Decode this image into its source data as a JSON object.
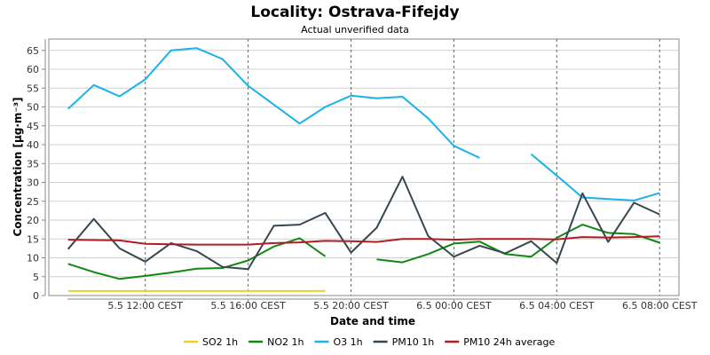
{
  "chart_data": {
    "type": "line",
    "title": "Locality: Ostrava-Fifejdy",
    "subtitle": "Actual unverified data",
    "xlabel": "Date and time",
    "ylabel": "Concentration [µg·m⁻³]",
    "ylim": [
      0,
      68
    ],
    "y_ticks": [
      0,
      5,
      10,
      15,
      20,
      25,
      30,
      35,
      40,
      45,
      50,
      55,
      60,
      65
    ],
    "x_range": [
      "2024-05-05T08:15",
      "2024-05-06T08:45"
    ],
    "x_ticks": [
      {
        "x": "2024-05-05T12:00",
        "label": "5.5 12:00 CEST"
      },
      {
        "x": "2024-05-05T16:00",
        "label": "5.5 16:00 CEST"
      },
      {
        "x": "2024-05-05T20:00",
        "label": "5.5 20:00 CEST"
      },
      {
        "x": "2024-05-06T00:00",
        "label": "6.5 00:00 CEST"
      },
      {
        "x": "2024-05-06T04:00",
        "label": "6.5 04:00 CEST"
      },
      {
        "x": "2024-05-06T08:00",
        "label": "6.5 08:00 CEST"
      }
    ],
    "x": [
      "2024-05-05T09:00",
      "2024-05-05T10:00",
      "2024-05-05T11:00",
      "2024-05-05T12:00",
      "2024-05-05T13:00",
      "2024-05-05T14:00",
      "2024-05-05T15:00",
      "2024-05-05T16:00",
      "2024-05-05T17:00",
      "2024-05-05T18:00",
      "2024-05-05T19:00",
      "2024-05-05T20:00",
      "2024-05-05T21:00",
      "2024-05-05T22:00",
      "2024-05-05T23:00",
      "2024-05-06T00:00",
      "2024-05-06T01:00",
      "2024-05-06T02:00",
      "2024-05-06T03:00",
      "2024-05-06T04:00",
      "2024-05-06T05:00",
      "2024-05-06T06:00",
      "2024-05-06T07:00",
      "2024-05-06T08:00"
    ],
    "grid": true,
    "legend_position": "bottom",
    "series": [
      {
        "name": "SO2 1h",
        "color": "#f0d020",
        "values": [
          1.2,
          1.2,
          1.2,
          1.2,
          1.2,
          1.2,
          1.2,
          1.2,
          1.2,
          1.2,
          1.2,
          null,
          null,
          null,
          null,
          null,
          null,
          null,
          null,
          null,
          null,
          null,
          null,
          null
        ]
      },
      {
        "name": "NO2 1h",
        "color": "#118811",
        "values": [
          8.4,
          6.2,
          4.4,
          5.2,
          6.1,
          7.1,
          7.3,
          9.3,
          13.0,
          15.2,
          10.4,
          null,
          9.6,
          8.8,
          11.0,
          13.8,
          14.3,
          11.0,
          10.3,
          15.3,
          18.8,
          16.6,
          16.3,
          14.0
        ]
      },
      {
        "name": "O3 1h",
        "color": "#1ab2ec",
        "values": [
          49.5,
          55.8,
          52.8,
          57.3,
          65.0,
          65.6,
          62.7,
          55.6,
          50.6,
          45.6,
          50.0,
          53.0,
          52.3,
          52.7,
          47.0,
          39.7,
          36.5,
          null,
          37.5,
          31.8,
          26.0,
          25.6,
          25.2,
          27.2
        ]
      },
      {
        "name": "PM10 1h",
        "color": "#37474f",
        "values": [
          12.3,
          20.3,
          12.5,
          9.0,
          13.9,
          11.8,
          7.6,
          7.0,
          18.5,
          18.8,
          21.9,
          11.4,
          18.0,
          31.5,
          15.8,
          10.3,
          13.2,
          11.2,
          14.4,
          8.6,
          27.1,
          14.2,
          24.6,
          21.5
        ]
      },
      {
        "name": "PM10 24h average",
        "color": "#b01c24",
        "values": [
          14.8,
          14.7,
          14.6,
          13.7,
          13.6,
          13.5,
          13.5,
          13.5,
          13.9,
          14.1,
          14.5,
          14.4,
          14.2,
          15.0,
          15.0,
          14.8,
          15.0,
          15.0,
          15.0,
          14.9,
          15.5,
          15.4,
          15.5,
          15.7
        ]
      }
    ]
  }
}
